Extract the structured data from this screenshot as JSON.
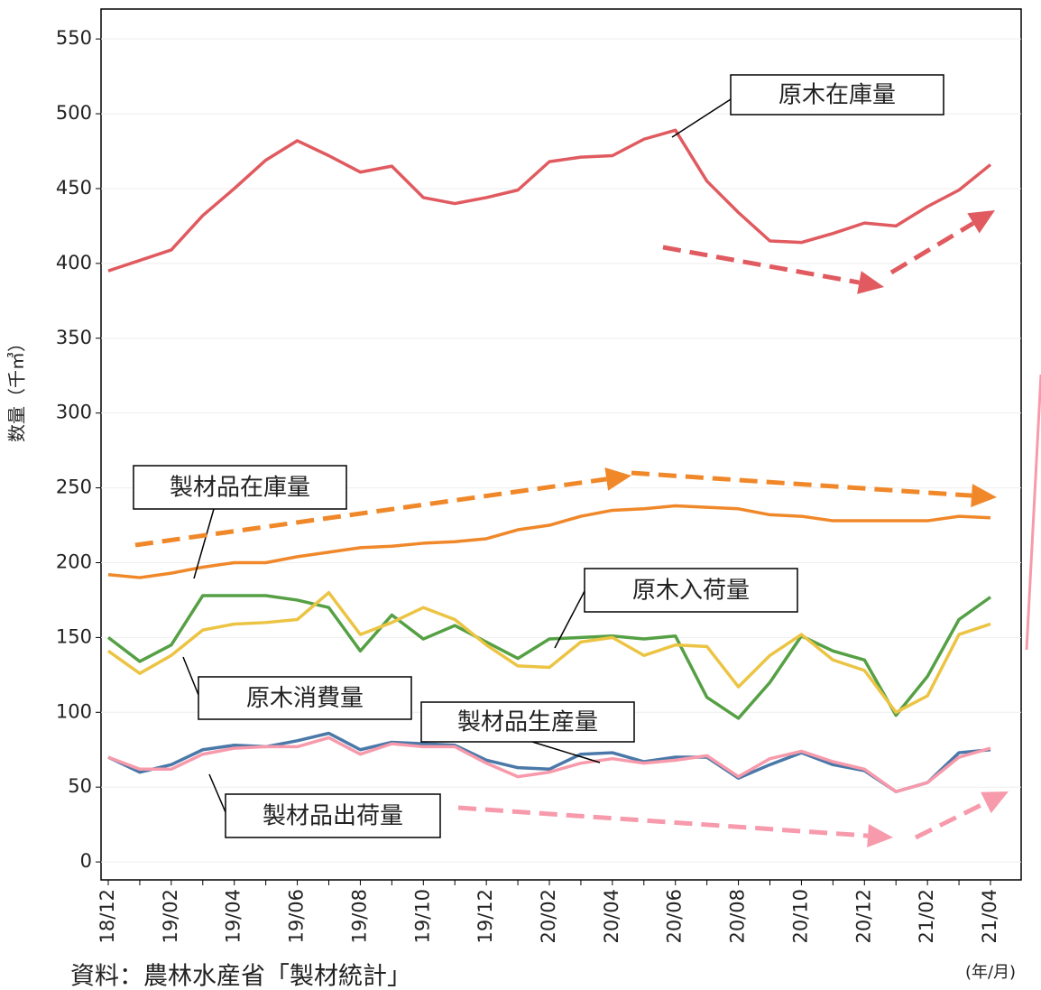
{
  "chart_data": {
    "type": "line",
    "y_label": "数量（千㎥）",
    "x_unit": "(年/月)",
    "source": "資料：農林水産省「製材統計」",
    "categories": [
      "18/12",
      null,
      "19/02",
      null,
      "19/04",
      null,
      "19/06",
      null,
      "19/08",
      null,
      "19/10",
      null,
      "19/12",
      null,
      "20/02",
      null,
      "20/04",
      null,
      "20/06",
      null,
      "20/08",
      null,
      "20/10",
      null,
      "20/12",
      null,
      "21/02",
      null,
      "21/04"
    ],
    "series": [
      {
        "name": "原木在庫量",
        "color": "#e05a5f",
        "values": [
          395,
          402,
          409,
          432,
          450,
          469,
          482,
          472,
          461,
          465,
          444,
          440,
          444,
          449,
          468,
          471,
          472,
          483,
          489,
          455,
          434,
          415,
          414,
          420,
          427,
          425,
          438,
          449,
          466
        ]
      },
      {
        "name": "製材品在庫量",
        "color": "#f0882a",
        "values": [
          192,
          190,
          193,
          197,
          200,
          200,
          204,
          207,
          210,
          211,
          213,
          214,
          216,
          222,
          225,
          231,
          235,
          236,
          238,
          237,
          236,
          232,
          231,
          228,
          228,
          228,
          228,
          231,
          230
        ]
      },
      {
        "name": "原木入荷量",
        "color": "#55a044",
        "values": [
          150,
          134,
          145,
          178,
          178,
          178,
          175,
          170,
          141,
          165,
          149,
          158,
          147,
          136,
          149,
          150,
          151,
          149,
          151,
          110,
          96,
          120,
          151,
          141,
          135,
          98,
          124,
          162,
          177
        ]
      },
      {
        "name": "原木消費量",
        "color": "#ecc444",
        "values": [
          141,
          126,
          138,
          155,
          159,
          160,
          162,
          180,
          152,
          160,
          170,
          162,
          145,
          131,
          130,
          147,
          150,
          138,
          145,
          144,
          117,
          138,
          152,
          135,
          128,
          100,
          111,
          152,
          159
        ]
      },
      {
        "name": "製材品生産量",
        "color": "#4a78a8",
        "values": [
          70,
          60,
          65,
          75,
          78,
          77,
          81,
          86,
          75,
          80,
          79,
          78,
          68,
          63,
          62,
          72,
          73,
          67,
          70,
          70,
          56,
          65,
          73,
          65,
          61,
          47,
          53,
          73,
          75
        ]
      },
      {
        "name": "製材品出荷量",
        "color": "#f79aab",
        "values": [
          70,
          62,
          62,
          72,
          76,
          77,
          77,
          83,
          72,
          79,
          77,
          77,
          66,
          57,
          60,
          66,
          69,
          66,
          68,
          71,
          57,
          69,
          74,
          67,
          62,
          47,
          53,
          70,
          76
        ]
      }
    ],
    "ylim": [
      -12,
      570
    ],
    "yticks": [
      0,
      50,
      100,
      150,
      200,
      250,
      300,
      350,
      400,
      450,
      500,
      550
    ],
    "grid": true
  }
}
